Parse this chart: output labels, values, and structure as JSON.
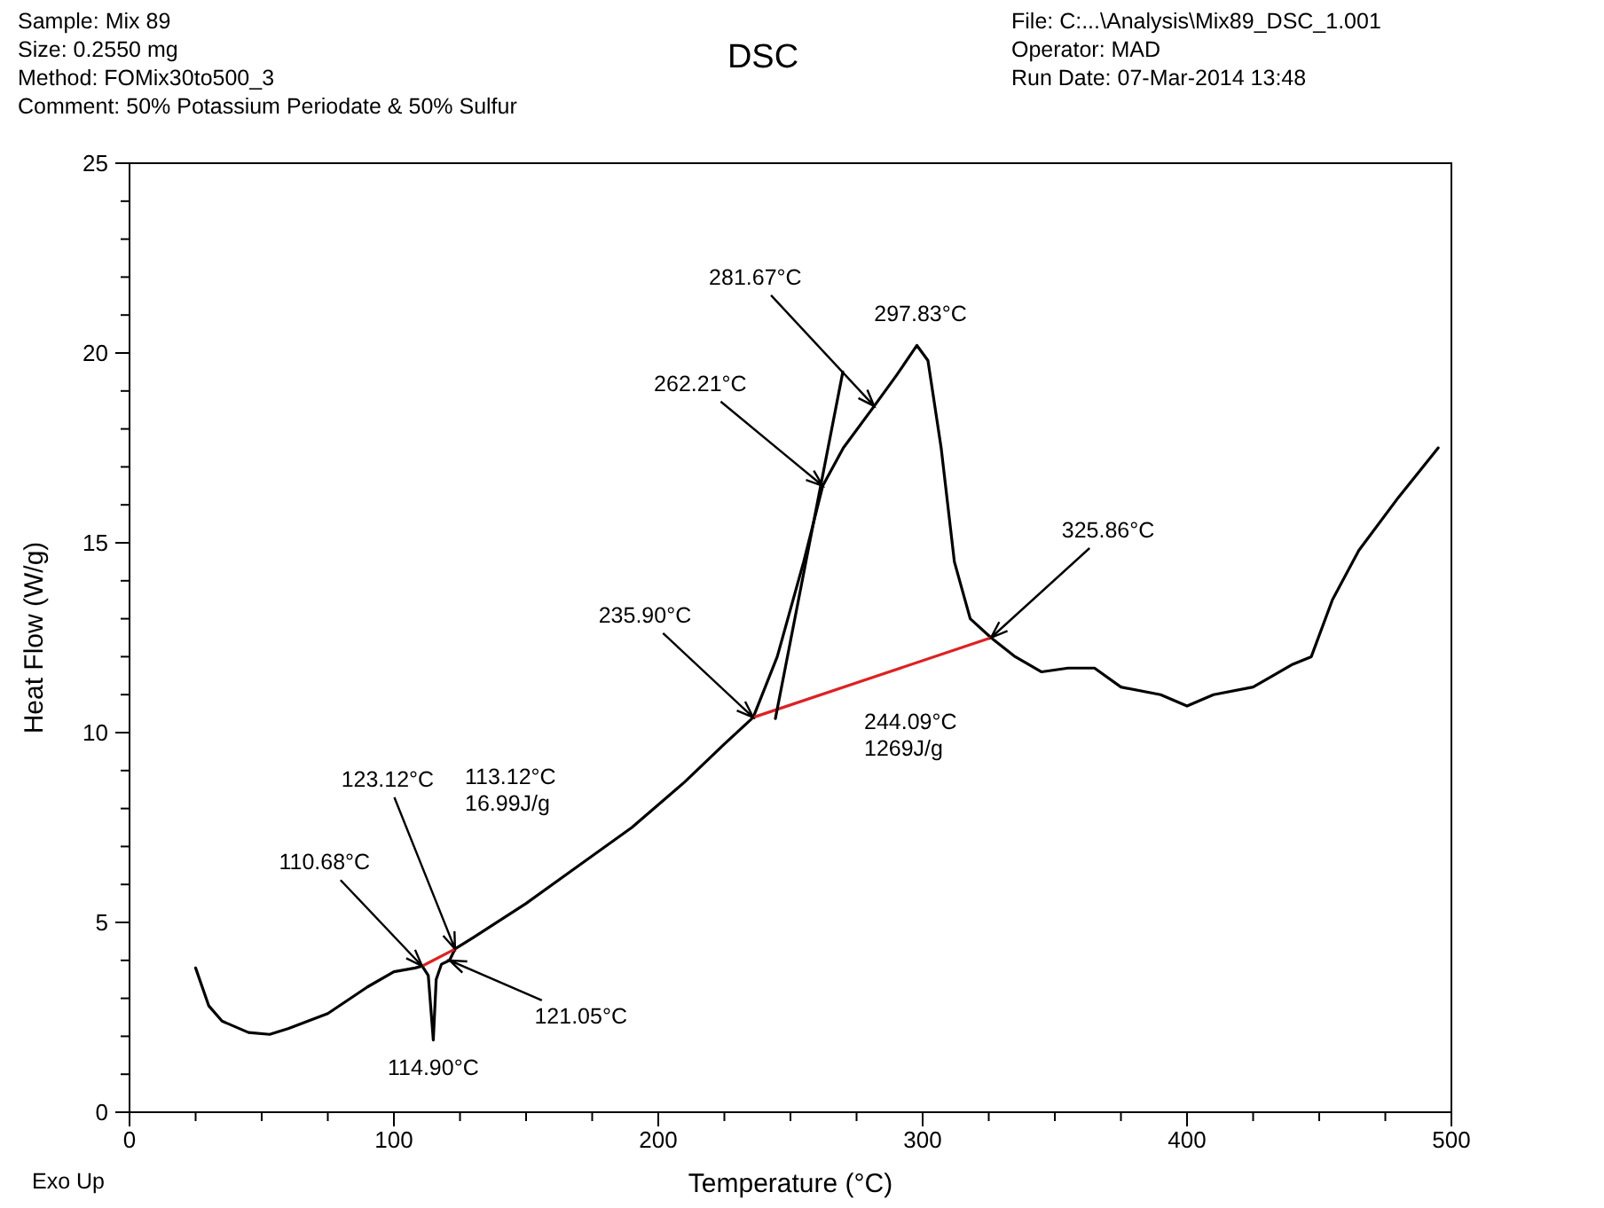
{
  "chart_data": {
    "type": "line",
    "title": "DSC",
    "xlabel": "Temperature (°C)",
    "ylabel": "Heat Flow (W/g)",
    "xlim": [
      0,
      500
    ],
    "ylim": [
      0,
      25
    ],
    "xticks": [
      0,
      {
        "value": 25,
        "label": null
      },
      {
        "value": 50,
        "label": null
      },
      {
        "value": 75,
        "label": null
      },
      100,
      {
        "value": 125,
        "label": null
      },
      {
        "value": 150,
        "label": null
      },
      {
        "value": 175,
        "label": null
      },
      200,
      {
        "value": 225,
        "label": null
      },
      {
        "value": 250,
        "label": null
      },
      {
        "value": 275,
        "label": null
      },
      300,
      {
        "value": 325,
        "label": null
      },
      {
        "value": 350,
        "label": null
      },
      {
        "value": 375,
        "label": null
      },
      400,
      {
        "value": 425,
        "label": null
      },
      {
        "value": 450,
        "label": null
      },
      {
        "value": 475,
        "label": null
      },
      500
    ],
    "yticks": [
      0,
      {
        "value": 1,
        "label": null
      },
      {
        "value": 2,
        "label": null
      },
      {
        "value": 3,
        "label": null
      },
      {
        "value": 4,
        "label": null
      },
      5,
      {
        "value": 6,
        "label": null
      },
      {
        "value": 7,
        "label": null
      },
      {
        "value": 8,
        "label": null
      },
      {
        "value": 9,
        "label": null
      },
      10,
      {
        "value": 11,
        "label": null
      },
      {
        "value": 12,
        "label": null
      },
      {
        "value": 13,
        "label": null
      },
      {
        "value": 14,
        "label": null
      },
      15,
      {
        "value": 16,
        "label": null
      },
      {
        "value": 17,
        "label": null
      },
      {
        "value": 18,
        "label": null
      },
      {
        "value": 19,
        "label": null
      },
      20,
      {
        "value": 21,
        "label": null
      },
      {
        "value": 22,
        "label": null
      },
      {
        "value": 23,
        "label": null
      },
      {
        "value": 24,
        "label": null
      },
      25
    ],
    "grid": false,
    "marker": "none",
    "line_style": "solid",
    "series": [
      {
        "color": "#000000",
        "x": [
          25,
          30,
          35,
          45,
          53,
          60,
          75,
          90,
          100,
          108,
          110.68,
          113,
          114.9,
          116,
          118,
          121.05,
          123.12,
          130,
          150,
          170,
          190,
          210,
          225,
          235.9,
          245,
          255,
          262.21,
          270,
          281.67,
          290,
          297.83,
          302,
          307,
          312,
          318,
          325.86,
          335,
          345,
          355,
          365,
          375,
          390,
          400,
          410,
          425,
          440,
          447,
          455,
          465,
          480,
          495
        ],
        "values": [
          3.8,
          2.8,
          2.4,
          2.1,
          2.05,
          2.2,
          2.6,
          3.3,
          3.7,
          3.8,
          3.85,
          3.6,
          1.9,
          3.5,
          3.9,
          4.0,
          4.3,
          4.6,
          5.5,
          6.5,
          7.5,
          8.7,
          9.7,
          10.4,
          12,
          14.5,
          16.5,
          17.5,
          18.6,
          19.4,
          20.2,
          19.8,
          17.5,
          14.5,
          13,
          12.5,
          12,
          11.6,
          11.7,
          11.7,
          11.2,
          11.0,
          10.7,
          11.0,
          11.2,
          11.8,
          12,
          13.5,
          14.8,
          16.2,
          17.5
        ]
      },
      {
        "color": "#e02020",
        "x": [
          110.68,
          123.12
        ],
        "values": [
          3.85,
          4.3
        ]
      },
      {
        "color": "#e02020",
        "x": [
          235.9,
          325.86
        ],
        "values": [
          10.4,
          12.5
        ]
      },
      {
        "color": "#000000",
        "x": [
          244.3,
          269.8
        ],
        "values": [
          10.37,
          19.5
        ]
      }
    ],
    "annotations": [
      "Sample: Mix 89",
      "Size:  0.2550 mg",
      "Method: FOMix30to500_3",
      "Comment: 50% Potassium Periodate & 50% Sulfur",
      "File: C:...\\Analysis\\Mix89_DSC_1.001",
      "Operator: MAD",
      "Run Date: 07-Mar-2014 13:48",
      "Exo Up",
      "113.12°C\n16.99J/g",
      "244.09°C\n1269J/g",
      {
        "text": "110.68°C",
        "x": 110.68,
        "y": 3.85
      },
      {
        "text": "123.12°C",
        "x": 123.12,
        "y": 4.3
      },
      {
        "text": "121.05°C",
        "x": 121.05,
        "y": 4.0
      },
      {
        "text": "114.90°C",
        "x": 114.9,
        "y": 1.9
      },
      {
        "text": "235.90°C",
        "x": 235.9,
        "y": 10.4
      },
      {
        "text": "262.21°C",
        "x": 262.21,
        "y": 16.5
      },
      {
        "text": "281.67°C",
        "x": 281.67,
        "y": 18.6
      },
      {
        "text": "297.83°C",
        "x": 297.83,
        "y": 20.2
      },
      {
        "text": "325.86°C",
        "x": 325.86,
        "y": 12.5
      }
    ]
  }
}
